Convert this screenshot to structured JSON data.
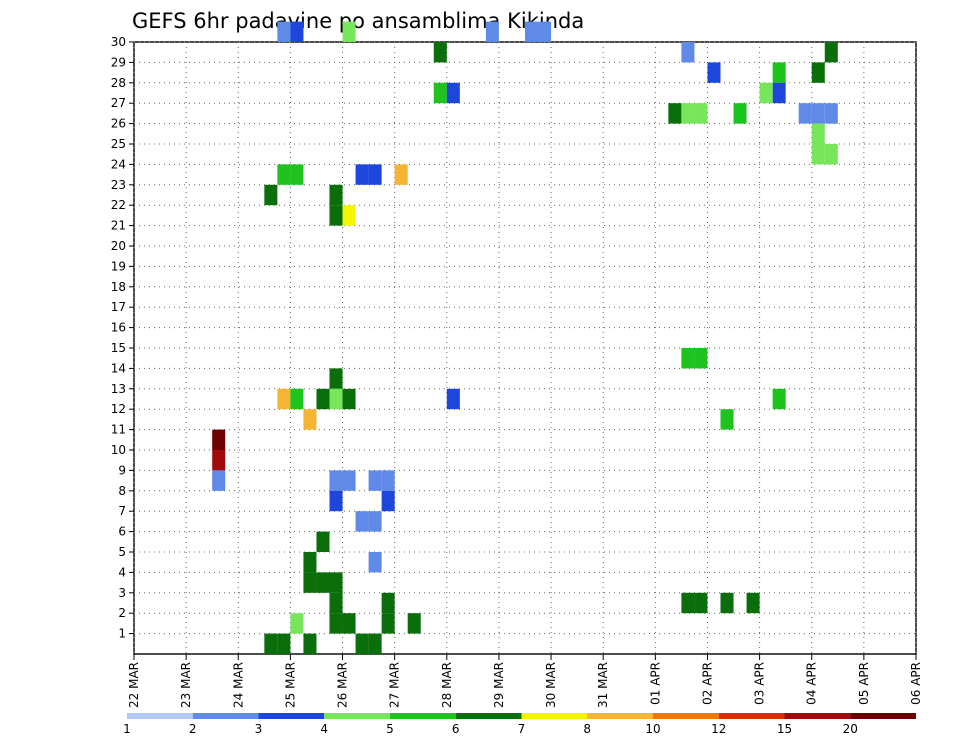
{
  "chart_data": {
    "type": "heatmap",
    "title": "GEFS 6hr padavine po ansamblima Kikinda",
    "xlabel": "",
    "ylabel": "",
    "y_ticks": [
      1,
      2,
      3,
      4,
      5,
      6,
      7,
      8,
      9,
      10,
      11,
      12,
      13,
      14,
      15,
      16,
      17,
      18,
      19,
      20,
      21,
      22,
      23,
      24,
      25,
      26,
      27,
      28,
      29,
      30
    ],
    "x_ticks": [
      "22 MAR",
      "23 MAR",
      "24 MAR",
      "25 MAR",
      "26 MAR",
      "27 MAR",
      "28 MAR",
      "29 MAR",
      "30 MAR",
      "31 MAR",
      "01 APR",
      "02 APR",
      "03 APR",
      "04 APR",
      "05 APR",
      "06 APR"
    ],
    "x_range_steps": [
      0,
      60
    ],
    "y_range": [
      0,
      30
    ],
    "grid": true,
    "colorbar": {
      "thresholds": [
        "1",
        "2",
        "3",
        "4",
        "5",
        "6",
        "7",
        "8",
        "10",
        "12",
        "15",
        "20"
      ],
      "colors": [
        "#b4c8f5",
        "#5f8ae8",
        "#1e46dc",
        "#78e65a",
        "#1ec31e",
        "#0a6e0a",
        "#f5f500",
        "#f5b432",
        "#f0780a",
        "#dc2d0a",
        "#a00a0a",
        "#6e0000"
      ]
    },
    "cells": [
      [
        10,
        0,
        5
      ],
      [
        11,
        0,
        5
      ],
      [
        13,
        0,
        5
      ],
      [
        12,
        1,
        3
      ],
      [
        11,
        30,
        1
      ],
      [
        12,
        30,
        2
      ],
      [
        16,
        30,
        3
      ],
      [
        27,
        30,
        1
      ],
      [
        30,
        30,
        1
      ],
      [
        31,
        30,
        1
      ],
      [
        23,
        29,
        5
      ],
      [
        42,
        29,
        1
      ],
      [
        53,
        29,
        5
      ],
      [
        44,
        28,
        2
      ],
      [
        49,
        28,
        4
      ],
      [
        52,
        28,
        5
      ],
      [
        49,
        27,
        2
      ],
      [
        23,
        27,
        4
      ],
      [
        24,
        27,
        2
      ],
      [
        48,
        27,
        3
      ],
      [
        51,
        26,
        1
      ],
      [
        52,
        26,
        1
      ],
      [
        53,
        26,
        1
      ],
      [
        41,
        26,
        5
      ],
      [
        42,
        26,
        3
      ],
      [
        43,
        26,
        3
      ],
      [
        46,
        26,
        4
      ],
      [
        52,
        25,
        3
      ],
      [
        52,
        24,
        3
      ],
      [
        53,
        24,
        3
      ],
      [
        17,
        23,
        2
      ],
      [
        18,
        23,
        2
      ],
      [
        11,
        23,
        4
      ],
      [
        12,
        23,
        4
      ],
      [
        20,
        23,
        7
      ],
      [
        10,
        22,
        5
      ],
      [
        15,
        22,
        5
      ],
      [
        15,
        21,
        5
      ],
      [
        16,
        21,
        6
      ],
      [
        15,
        13,
        5
      ],
      [
        45,
        11,
        4
      ],
      [
        42,
        14,
        4
      ],
      [
        43,
        14,
        4
      ],
      [
        11,
        12,
        7
      ],
      [
        12,
        12,
        4
      ],
      [
        14,
        12,
        5
      ],
      [
        15,
        12,
        3
      ],
      [
        16,
        12,
        5
      ],
      [
        24,
        12,
        2
      ],
      [
        49,
        12,
        4
      ],
      [
        13,
        11,
        7
      ],
      [
        6,
        10,
        11
      ],
      [
        6,
        9,
        10
      ],
      [
        6,
        8,
        1
      ],
      [
        15,
        8,
        1
      ],
      [
        16,
        8,
        1
      ],
      [
        18,
        8,
        1
      ],
      [
        19,
        8,
        1
      ],
      [
        19,
        7,
        2
      ],
      [
        15,
        7,
        2
      ],
      [
        17,
        6,
        1
      ],
      [
        18,
        6,
        1
      ],
      [
        14,
        5,
        5
      ],
      [
        13,
        4,
        5
      ],
      [
        18,
        4,
        1
      ],
      [
        13,
        3,
        5
      ],
      [
        14,
        3,
        5
      ],
      [
        15,
        3,
        5
      ],
      [
        15,
        2,
        5
      ],
      [
        19,
        2,
        5
      ],
      [
        42,
        2,
        5
      ],
      [
        43,
        2,
        5
      ],
      [
        45,
        2,
        5
      ],
      [
        47,
        2,
        5
      ],
      [
        15,
        1,
        5
      ],
      [
        16,
        1,
        5
      ],
      [
        19,
        1,
        5
      ],
      [
        18,
        0,
        5
      ],
      [
        17,
        0,
        5
      ],
      [
        21,
        1,
        5
      ]
    ]
  }
}
